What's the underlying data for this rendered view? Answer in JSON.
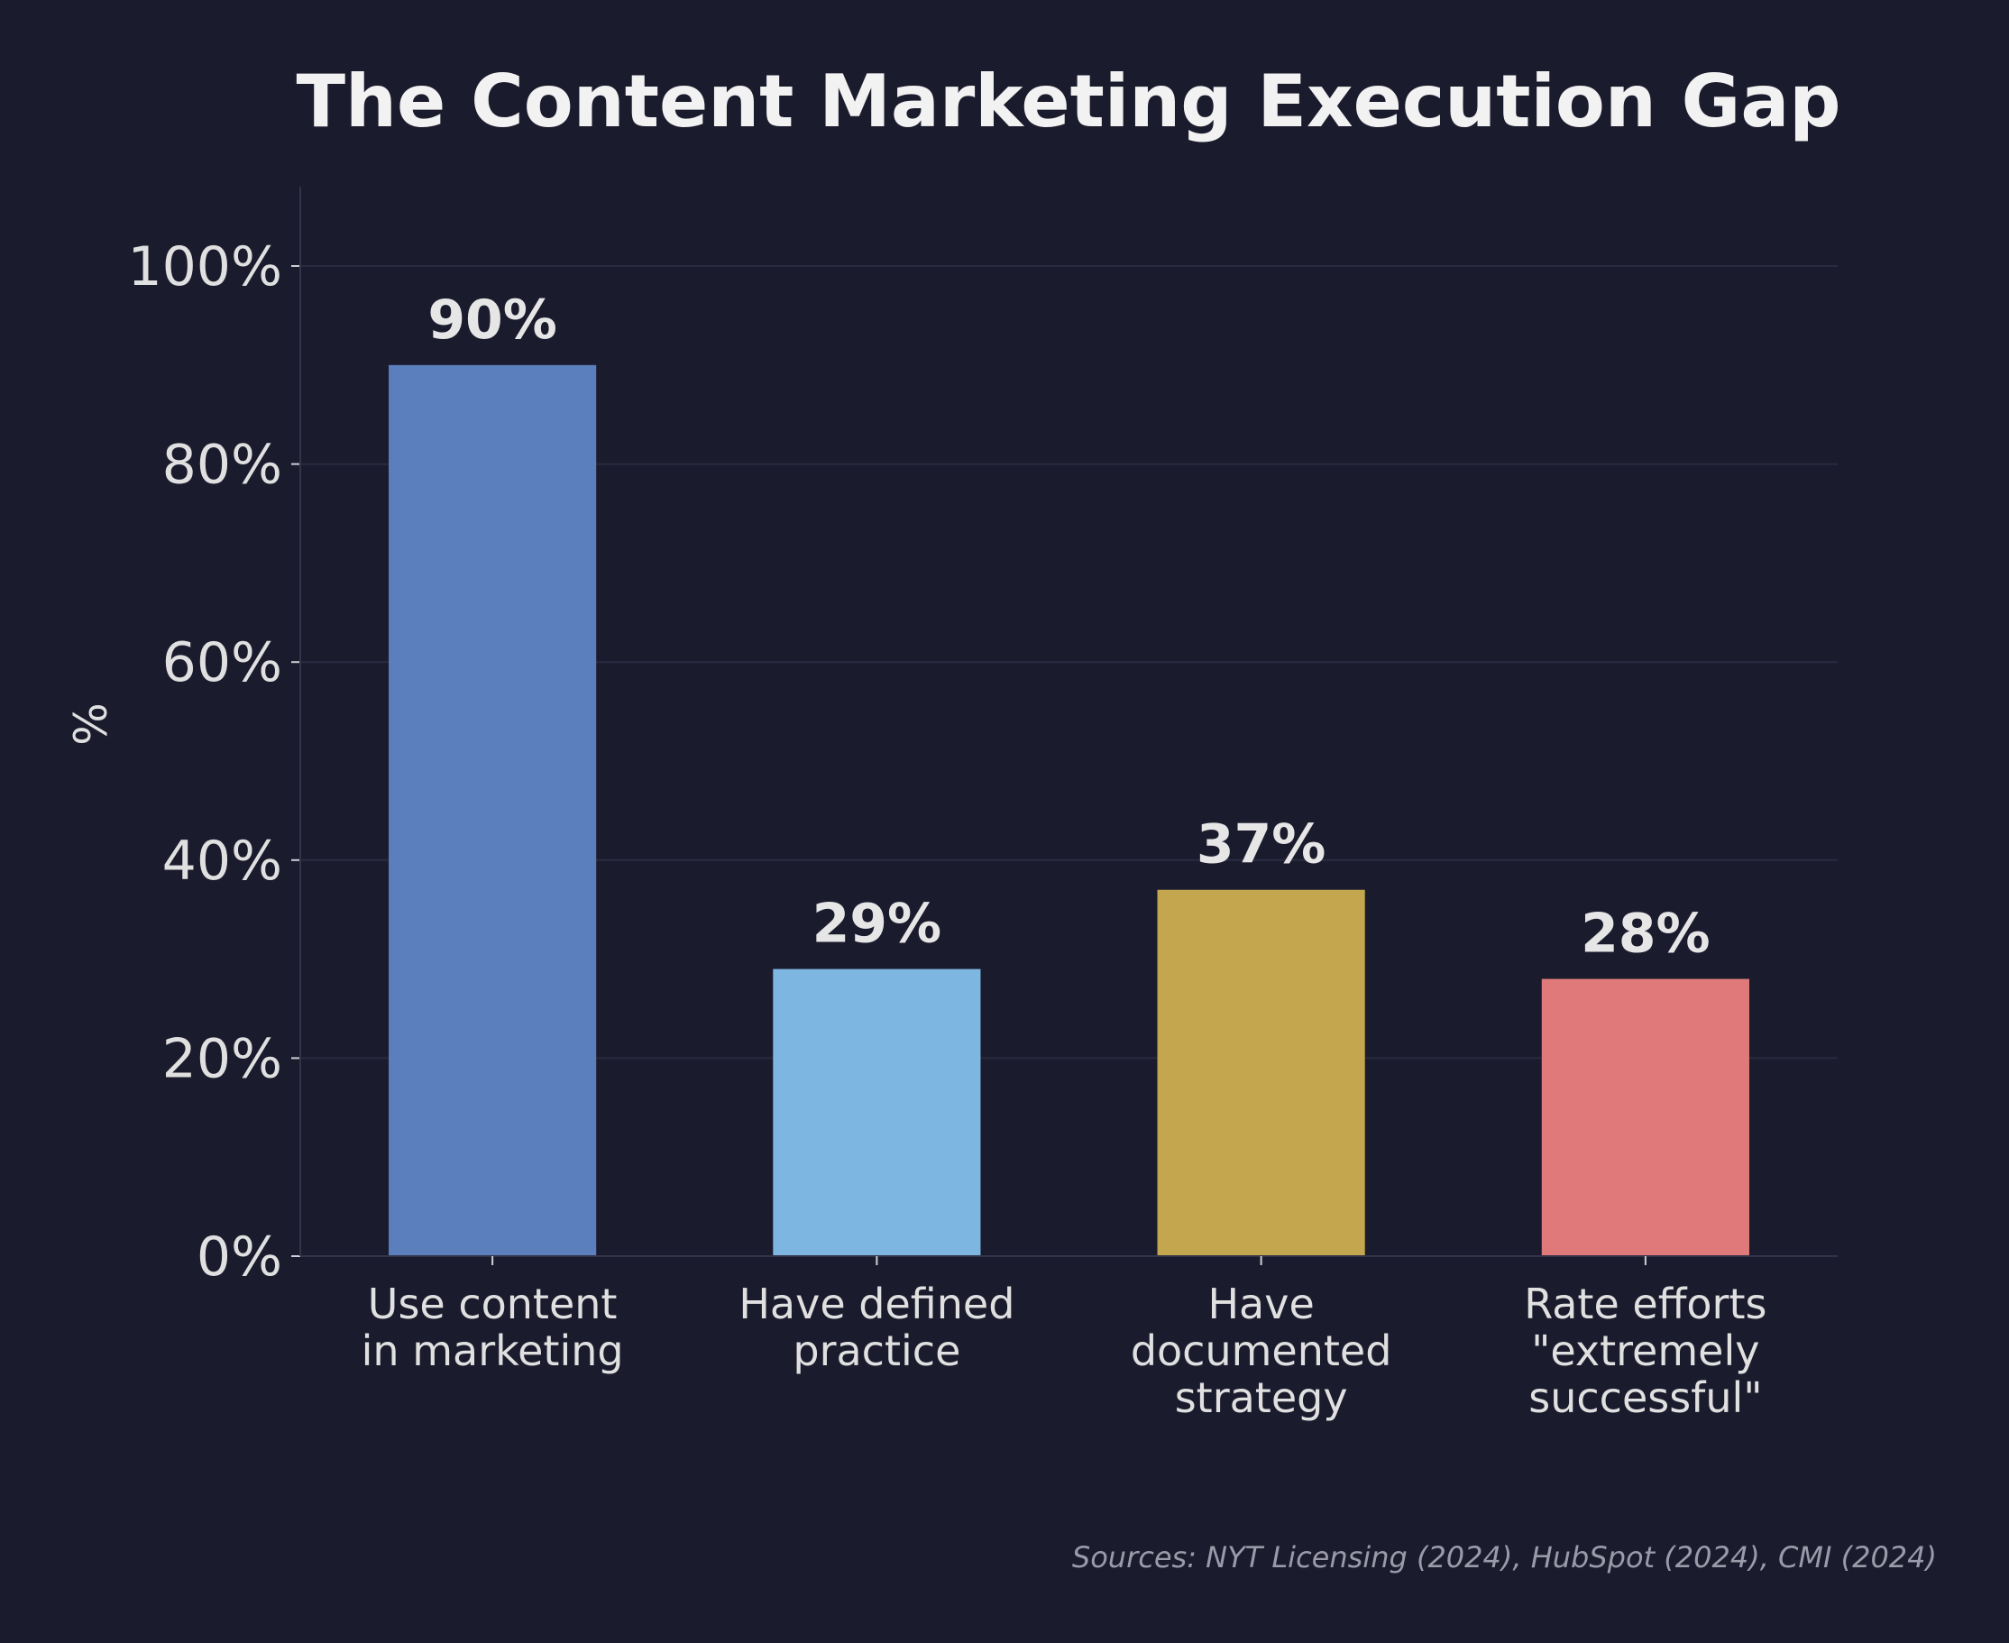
{
  "chart_data": {
    "type": "bar",
    "title": "The Content Marketing Execution Gap",
    "xlabel": "",
    "ylabel": "%",
    "categories": [
      [
        "Use content",
        "in marketing"
      ],
      [
        "Have defined",
        "practice"
      ],
      [
        "Have",
        "documented",
        "strategy"
      ],
      [
        "Rate efforts",
        "\"extremely",
        "successful\""
      ]
    ],
    "values": [
      90,
      29,
      37,
      28
    ],
    "data_labels": [
      "90%",
      "29%",
      "37%",
      "28%"
    ],
    "colors": [
      "#5b7fbc",
      "#7db6e0",
      "#c4a64e",
      "#e07a7a"
    ],
    "ylim": [
      0,
      108
    ],
    "yticks": [
      0,
      20,
      40,
      60,
      80,
      100
    ],
    "ytick_labels": [
      "0%",
      "20%",
      "40%",
      "60%",
      "80%",
      "100%"
    ],
    "grid": true,
    "legend": "none"
  },
  "source_note": "Sources: NYT Licensing (2024), HubSpot (2024), CMI (2024)"
}
